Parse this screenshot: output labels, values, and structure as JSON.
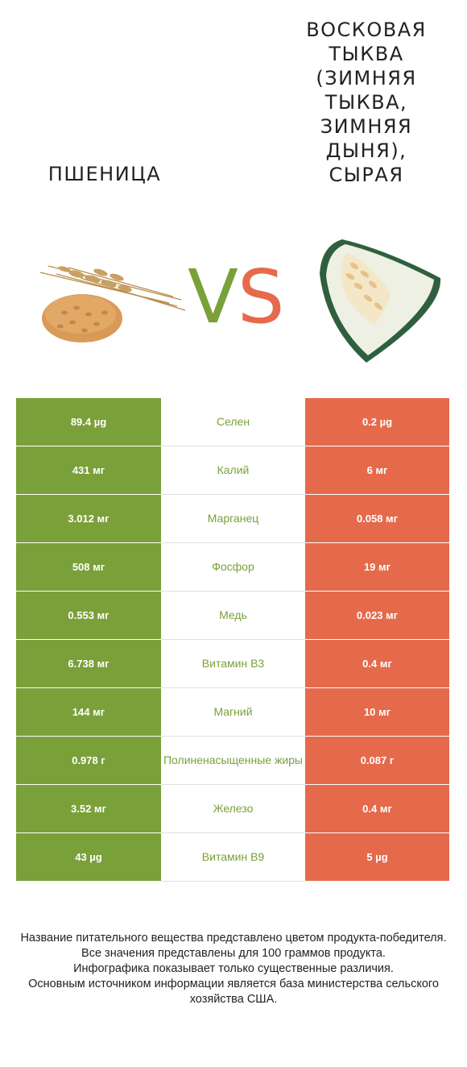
{
  "left_food": {
    "title": "ПШЕНИЦА",
    "image_icon": "wheat-icon"
  },
  "right_food": {
    "title": "ВОСКОВАЯ ТЫКВА (ЗИМНЯЯ ТЫКВА, ЗИМНЯЯ ДЫНЯ), СЫРАЯ",
    "image_icon": "wax-gourd-icon"
  },
  "vs": {
    "v": "V",
    "s": "S"
  },
  "colors": {
    "left": "#7aa03a",
    "right": "#e56a4b",
    "nutrient_name": "#7aa03a"
  },
  "rows": [
    {
      "left": "89.4 µg",
      "nutrient": "Селен",
      "right": "0.2 µg"
    },
    {
      "left": "431 мг",
      "nutrient": "Калий",
      "right": "6 мг"
    },
    {
      "left": "3.012 мг",
      "nutrient": "Марганец",
      "right": "0.058 мг"
    },
    {
      "left": "508 мг",
      "nutrient": "Фосфор",
      "right": "19 мг"
    },
    {
      "left": "0.553 мг",
      "nutrient": "Медь",
      "right": "0.023 мг"
    },
    {
      "left": "6.738 мг",
      "nutrient": "Витамин B3",
      "right": "0.4 мг"
    },
    {
      "left": "144 мг",
      "nutrient": "Магний",
      "right": "10 мг"
    },
    {
      "left": "0.978 г",
      "nutrient": "Полиненасыщенные жиры",
      "right": "0.087 г"
    },
    {
      "left": "3.52 мг",
      "nutrient": "Железо",
      "right": "0.4 мг"
    },
    {
      "left": "43 µg",
      "nutrient": "Витамин B9",
      "right": "5 µg"
    }
  ],
  "footer": {
    "line1": "Название питательного вещества представлено цветом продукта-победителя.",
    "line2": "Все значения представлены для 100 граммов продукта.",
    "line3": "Инфографика показывает только существенные различия.",
    "line4": "Основным источником информации является база министерства сельского хозяйства США."
  }
}
